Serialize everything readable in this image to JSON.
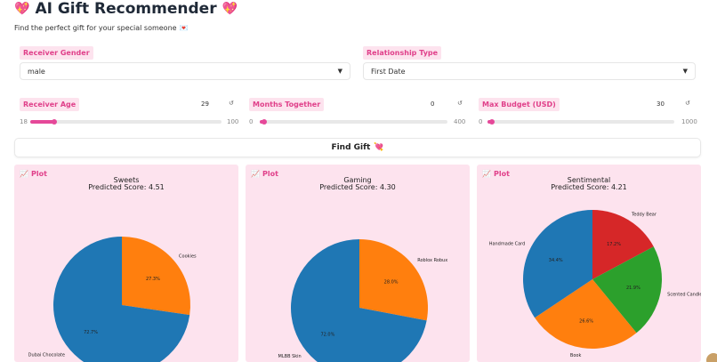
{
  "header": {
    "title": "AI Gift Recommender",
    "subtitle": "Find the perfect gift for your special someone"
  },
  "inputs": {
    "gender": {
      "label": "Receiver Gender",
      "value": "male"
    },
    "relationship": {
      "label": "Relationship Type",
      "value": "First Date"
    }
  },
  "sliders": [
    {
      "label": "Receiver Age",
      "value": "29",
      "min": "18",
      "max": "100",
      "fraction": 0.13
    },
    {
      "label": "Months Together",
      "value": "0",
      "min": "0",
      "max": "400",
      "fraction": 0.0
    },
    {
      "label": "Max Budget (USD)",
      "value": "30",
      "min": "0",
      "max": "1000",
      "fraction": 0.03
    }
  ],
  "actions": {
    "find_label": "Find Gift"
  },
  "plot_label": "Plot",
  "chart_data": [
    {
      "type": "pie",
      "title": "Sweets",
      "subtitle": "Predicted Score: 4.51",
      "slices": [
        {
          "label": "Cookies",
          "value": 27.3,
          "pct": "27.3%",
          "color": "#ff7f0e"
        },
        {
          "label": "Dubai Chocolate",
          "value": 72.7,
          "pct": "72.7%",
          "color": "#1f77b4"
        }
      ]
    },
    {
      "type": "pie",
      "title": "Gaming",
      "subtitle": "Predicted Score: 4.30",
      "slices": [
        {
          "label": "Roblox Robux",
          "value": 28.0,
          "pct": "28.0%",
          "color": "#ff7f0e"
        },
        {
          "label": "MLBB Skin",
          "value": 72.0,
          "pct": "72.0%",
          "color": "#1f77b4"
        }
      ]
    },
    {
      "type": "pie",
      "title": "Sentimental",
      "subtitle": "Predicted Score: 4.21",
      "slices": [
        {
          "label": "Teddy Bear",
          "value": 17.2,
          "pct": "17.2%",
          "color": "#d62728"
        },
        {
          "label": "Scented Candle",
          "value": 21.9,
          "pct": "21.9%",
          "color": "#2ca02c"
        },
        {
          "label": "Book",
          "value": 26.6,
          "pct": "26.6%",
          "color": "#ff7f0e"
        },
        {
          "label": "Handmade Card",
          "value": 34.4,
          "pct": "34.4%",
          "color": "#1f77b4"
        }
      ]
    }
  ]
}
